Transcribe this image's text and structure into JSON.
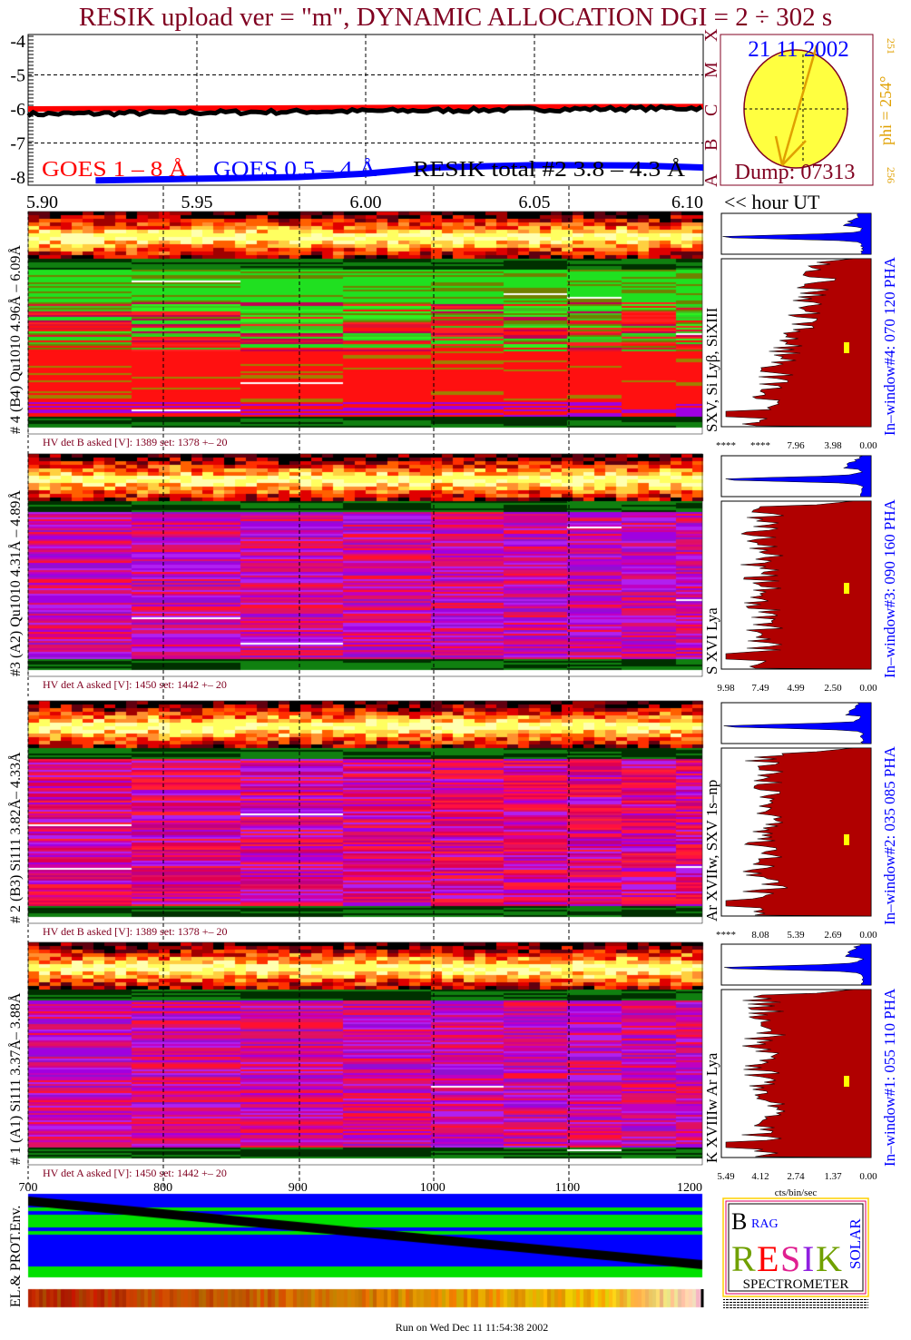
{
  "title": "RESIK upload ver = \"m\", DYNAMIC ALLOCATION  DGI =   2 ÷ 302 s",
  "colors": {
    "title": "#800020",
    "goes_long": "#ff0000",
    "goes_short": "#0000ff",
    "resik": "#000000",
    "hist_fill": "#b00000",
    "hist_small": "#0000ff",
    "window_label": "#0000ff",
    "phi": "#e0a000"
  },
  "chart_data": [
    {
      "type": "line",
      "title": "",
      "ylabel": "",
      "xlabel": "<< hour UT",
      "x_ticks": [
        "5.90",
        "5.95",
        "6.00",
        "6.05",
        "6.10"
      ],
      "xlim": [
        5.9,
        6.1
      ],
      "y_ticks": [
        "-4",
        "-5",
        "-6",
        "-7",
        "-8"
      ],
      "ylim": [
        -8.1,
        -3.9
      ],
      "class_labels": [
        "A",
        "B",
        "C",
        "M",
        "X"
      ],
      "grid": true,
      "series": [
        {
          "name": "GOES 1 – 8 Å",
          "x": [
            5.9,
            5.95,
            6.0,
            6.05,
            6.1
          ],
          "y": [
            -6.0,
            -5.98,
            -5.96,
            -5.94,
            -5.93
          ]
        },
        {
          "name": "GOES 0.5 – 4 Å",
          "x": [
            5.92,
            5.95,
            5.98,
            6.0,
            6.02,
            6.05,
            6.08,
            6.1
          ],
          "y": [
            -8.1,
            -8.05,
            -8.0,
            -7.9,
            -7.72,
            -7.65,
            -7.66,
            -7.72
          ]
        },
        {
          "name": "RESIK total #2  3.8 – 4.3 Å",
          "x": [
            5.9,
            5.95,
            6.0,
            6.05,
            6.1
          ],
          "y": [
            -6.15,
            -6.12,
            -6.08,
            -6.02,
            -5.97
          ]
        }
      ]
    },
    {
      "type": "heatmap",
      "panels": [
        {
          "label": "# 4 (B4) Qu1010 4.96Å – 6.09Å",
          "hv": "HV det B asked [V]:  1389 set:  1378 +–   20",
          "lines": "SXV, Si Lyβ, SiXIII",
          "window": "In–window#4:  070 120 PHA",
          "hist_ticks": [
            "****",
            "****",
            "7.96",
            "3.98",
            "0.00"
          ]
        },
        {
          "label": "#3 (A2) Qu1010  4.31Å – 4.89Å",
          "hv": "HV det A asked [V]:  1450 set:  1442 +–   20",
          "lines": "S XVI Lya",
          "window": "In–window#3:  090 160 PHA",
          "hist_ticks": [
            "9.98",
            "7.49",
            "4.99",
            "2.50",
            "0.00"
          ]
        },
        {
          "label": "# 2 (B3) Si111  3.82Å– 4.33Å",
          "hv": "HV det B asked [V]:  1389 set:  1378 +–   20",
          "lines": "Ar XVIIw,  SXV 1s–np",
          "window": "In–window#2:  035 085 PHA",
          "hist_ticks": [
            "****",
            "8.08",
            "5.39",
            "2.69",
            "0.00"
          ]
        },
        {
          "label": "# 1 (A1) Si111  3.37Å– 3.88Å",
          "hv": "HV det A asked [V]:  1450 set:  1442 +–   20",
          "lines": "K XVIIIw  Ar Lya",
          "window": "In–window#1:  055 110 PHA",
          "hist_ticks": [
            "5.49",
            "4.12",
            "2.74",
            "1.37",
            "0.00"
          ]
        }
      ],
      "x_ticks": [
        "700",
        "800",
        "900",
        "1000",
        "1100",
        "1200"
      ],
      "hist_xlabel": "cts/bin/sec"
    }
  ],
  "sun": {
    "date": "21 11 2002",
    "dump": "Dump: 07313",
    "phi": "phi = 254°",
    "phi_small": "251",
    "phi_bottom": "256"
  },
  "env_label": "EL.& PROT.Env.",
  "logo": {
    "letters": "BRAG RESIK SOLAR",
    "caption": "SPECTROMETER"
  },
  "footer": "Run on Wed Dec 11 11:54:38 2002"
}
